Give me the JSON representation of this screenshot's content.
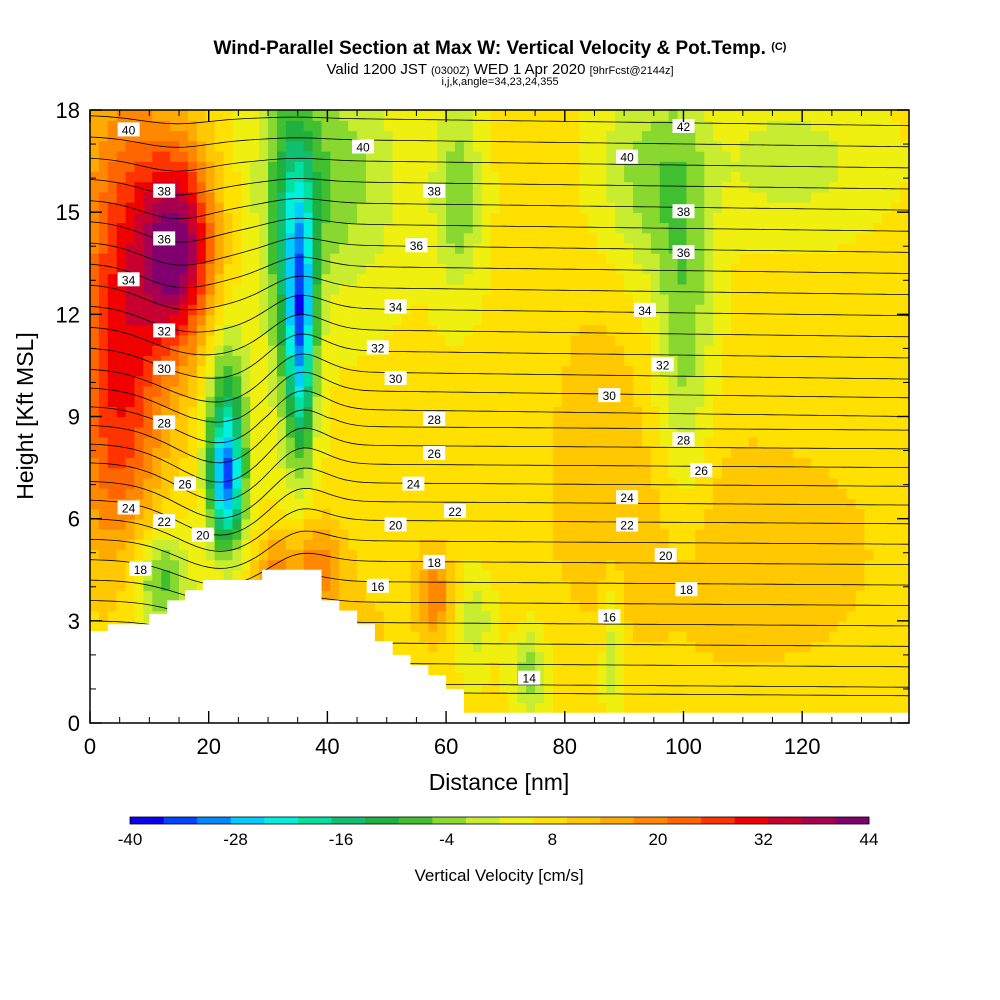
{
  "header": {
    "title": "Wind-Parallel Section at Max W: Vertical Velocity & Pot.Temp.",
    "title_mark": "(C)",
    "valid_prefix": "Valid 1200 JST",
    "valid_utc": "(0300Z)",
    "valid_date": "WED 1 Apr 2020",
    "forecast": "[9hrFcst@2144z]",
    "indices": "i,j,k,angle=34,23,24,355"
  },
  "chart_data": {
    "type": "heatmap",
    "xlabel": "Distance [nm]",
    "ylabel": "Height [Kft MSL]",
    "xlim": [
      0,
      138
    ],
    "ylim": [
      0,
      18
    ],
    "x_ticks": [
      "0",
      "20",
      "40",
      "60",
      "80",
      "100",
      "120"
    ],
    "y_ticks": [
      "0",
      "3",
      "6",
      "9",
      "12",
      "15",
      "18"
    ],
    "colorbar": {
      "label": "Vertical Velocity [cm/s]",
      "range": [
        -40,
        44
      ],
      "step": 4,
      "tick_labels": [
        "-40",
        "-28",
        "-16",
        "-4",
        "8",
        "20",
        "32",
        "44"
      ],
      "colors": [
        "#0a00f0",
        "#0044ff",
        "#0088ff",
        "#00ccff",
        "#00f0e0",
        "#00e0a0",
        "#10c070",
        "#20b040",
        "#40c030",
        "#88d830",
        "#c8ec30",
        "#f0f010",
        "#ffe000",
        "#ffc800",
        "#ffaa00",
        "#ff8800",
        "#ff6600",
        "#ff3300",
        "#f00000",
        "#c80030",
        "#a80050",
        "#800070"
      ]
    },
    "terrain": [
      [
        0,
        2.7
      ],
      [
        3,
        2.7
      ],
      [
        3,
        2.9
      ],
      [
        10,
        2.9
      ],
      [
        10,
        3.2
      ],
      [
        13,
        3.2
      ],
      [
        13,
        3.6
      ],
      [
        16,
        3.6
      ],
      [
        16,
        3.9
      ],
      [
        19,
        3.9
      ],
      [
        19,
        4.2
      ],
      [
        29,
        4.2
      ],
      [
        29,
        4.5
      ],
      [
        39,
        4.5
      ],
      [
        39,
        3.6
      ],
      [
        42,
        3.6
      ],
      [
        42,
        3.3
      ],
      [
        45,
        3.3
      ],
      [
        45,
        2.9
      ],
      [
        48,
        2.9
      ],
      [
        48,
        2.4
      ],
      [
        51,
        2.4
      ],
      [
        51,
        2.0
      ],
      [
        54,
        2.0
      ],
      [
        54,
        1.7
      ],
      [
        57,
        1.7
      ],
      [
        57,
        1.4
      ],
      [
        60,
        1.4
      ],
      [
        60,
        1.0
      ],
      [
        63,
        1.0
      ],
      [
        63,
        0.3
      ],
      [
        138,
        0.3
      ]
    ],
    "theta_labels": [
      {
        "x": 6.5,
        "y": 17.4,
        "text": "40"
      },
      {
        "x": 46,
        "y": 16.9,
        "text": "40"
      },
      {
        "x": 100,
        "y": 17.5,
        "text": "42"
      },
      {
        "x": 90.5,
        "y": 16.6,
        "text": "40"
      },
      {
        "x": 12.5,
        "y": 15.6,
        "text": "38"
      },
      {
        "x": 58,
        "y": 15.6,
        "text": "38"
      },
      {
        "x": 100,
        "y": 15.0,
        "text": "38"
      },
      {
        "x": 12.5,
        "y": 14.2,
        "text": "36"
      },
      {
        "x": 55,
        "y": 14.0,
        "text": "36"
      },
      {
        "x": 100,
        "y": 13.8,
        "text": "36"
      },
      {
        "x": 6.5,
        "y": 13.0,
        "text": "34"
      },
      {
        "x": 51.5,
        "y": 12.2,
        "text": "34"
      },
      {
        "x": 93.5,
        "y": 12.1,
        "text": "34"
      },
      {
        "x": 12.5,
        "y": 11.5,
        "text": "32"
      },
      {
        "x": 48.5,
        "y": 11.0,
        "text": "32"
      },
      {
        "x": 96.5,
        "y": 10.5,
        "text": "32"
      },
      {
        "x": 12.5,
        "y": 10.4,
        "text": "30"
      },
      {
        "x": 51.5,
        "y": 10.1,
        "text": "30"
      },
      {
        "x": 87.5,
        "y": 9.6,
        "text": "30"
      },
      {
        "x": 12.5,
        "y": 8.8,
        "text": "28"
      },
      {
        "x": 58,
        "y": 8.9,
        "text": "28"
      },
      {
        "x": 100,
        "y": 8.3,
        "text": "28"
      },
      {
        "x": 16,
        "y": 7.0,
        "text": "26"
      },
      {
        "x": 58,
        "y": 7.9,
        "text": "26"
      },
      {
        "x": 103,
        "y": 7.4,
        "text": "26"
      },
      {
        "x": 6.5,
        "y": 6.3,
        "text": "24"
      },
      {
        "x": 54.5,
        "y": 7.0,
        "text": "24"
      },
      {
        "x": 90.5,
        "y": 6.6,
        "text": "24"
      },
      {
        "x": 12.5,
        "y": 5.9,
        "text": "22"
      },
      {
        "x": 61.5,
        "y": 6.2,
        "text": "22"
      },
      {
        "x": 90.5,
        "y": 5.8,
        "text": "22"
      },
      {
        "x": 19,
        "y": 5.5,
        "text": "20"
      },
      {
        "x": 51.5,
        "y": 5.8,
        "text": "20"
      },
      {
        "x": 97,
        "y": 4.9,
        "text": "20"
      },
      {
        "x": 8.5,
        "y": 4.5,
        "text": "18"
      },
      {
        "x": 58,
        "y": 4.7,
        "text": "18"
      },
      {
        "x": 100.5,
        "y": 3.9,
        "text": "18"
      },
      {
        "x": 48.5,
        "y": 4.0,
        "text": "16"
      },
      {
        "x": 87.5,
        "y": 3.1,
        "text": "16"
      },
      {
        "x": 74,
        "y": 1.3,
        "text": "14"
      }
    ]
  }
}
